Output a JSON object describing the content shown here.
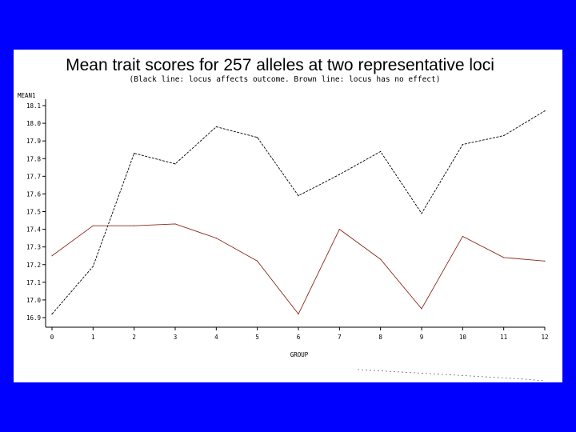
{
  "chart_data": {
    "type": "line",
    "title": "Mean trait scores for 257 alleles at two representative loci",
    "subtitle": "(Black line: locus affects outcome. Brown line: locus has no effect)",
    "xlabel": "GROUP",
    "ylabel": "MEAN1",
    "x": [
      0,
      1,
      2,
      3,
      4,
      5,
      6,
      7,
      8,
      9,
      10,
      11,
      12
    ],
    "xlim": [
      0,
      12
    ],
    "ylim": [
      16.9,
      18.1
    ],
    "yticks": [
      "16.9",
      "17.0",
      "17.1",
      "17.2",
      "17.3",
      "17.4",
      "17.5",
      "17.6",
      "17.7",
      "17.8",
      "17.9",
      "18.0",
      "18.1"
    ],
    "grid": false,
    "series": [
      {
        "color": "#000000",
        "values": [
          16.92,
          17.19,
          17.83,
          17.77,
          17.98,
          17.92,
          17.59,
          17.71,
          17.84,
          17.49,
          17.88,
          17.93,
          18.07
        ]
      },
      {
        "color": "#8b2a1a",
        "values": [
          17.25,
          17.42,
          17.42,
          17.43,
          17.35,
          17.22,
          16.92,
          17.4,
          17.23,
          16.95,
          17.36,
          17.24,
          17.22
        ]
      }
    ]
  }
}
